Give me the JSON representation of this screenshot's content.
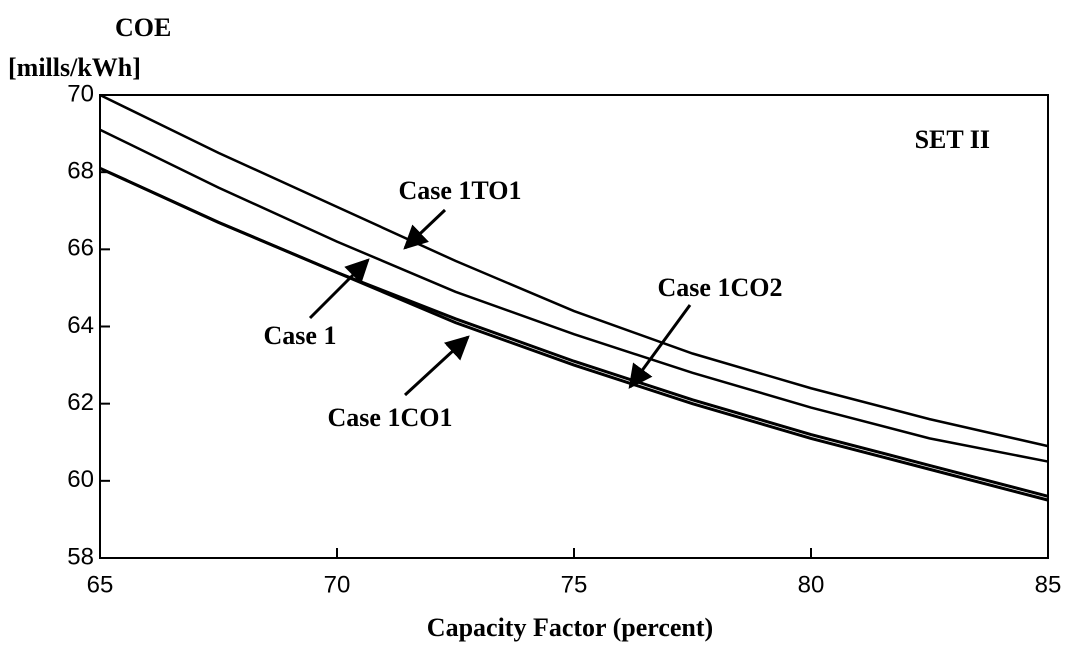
{
  "chart_data": {
    "type": "line",
    "y_label_lines": [
      "COE",
      "[mills/kWh]"
    ],
    "x_label": "Capacity Factor (percent)",
    "annotation": "SET II",
    "x": [
      65,
      67.5,
      70,
      72.5,
      75,
      77.5,
      80,
      82.5,
      85
    ],
    "series": [
      {
        "name": "Case 1TO1",
        "color": "#000000",
        "values": [
          70.0,
          68.5,
          67.1,
          65.7,
          64.4,
          63.3,
          62.4,
          61.6,
          60.9
        ]
      },
      {
        "name": "Case 1",
        "color": "#000000",
        "values": [
          69.1,
          67.6,
          66.2,
          64.9,
          63.8,
          62.8,
          61.9,
          61.1,
          60.5
        ]
      },
      {
        "name": "Case 1CO1",
        "color": "#000000",
        "values": [
          68.1,
          66.7,
          65.4,
          64.1,
          63.0,
          62.0,
          61.1,
          60.3,
          59.5
        ]
      },
      {
        "name": "Case 1CO2",
        "color": "#000000",
        "values": [
          68.1,
          66.7,
          65.4,
          64.2,
          63.1,
          62.1,
          61.2,
          60.4,
          59.6
        ]
      }
    ],
    "xlim": [
      65,
      85
    ],
    "xticks": [
      65,
      70,
      75,
      80,
      85
    ],
    "ylim": [
      58,
      70
    ],
    "yticks": [
      58,
      60,
      62,
      64,
      66,
      68,
      70
    ],
    "grid": false
  }
}
